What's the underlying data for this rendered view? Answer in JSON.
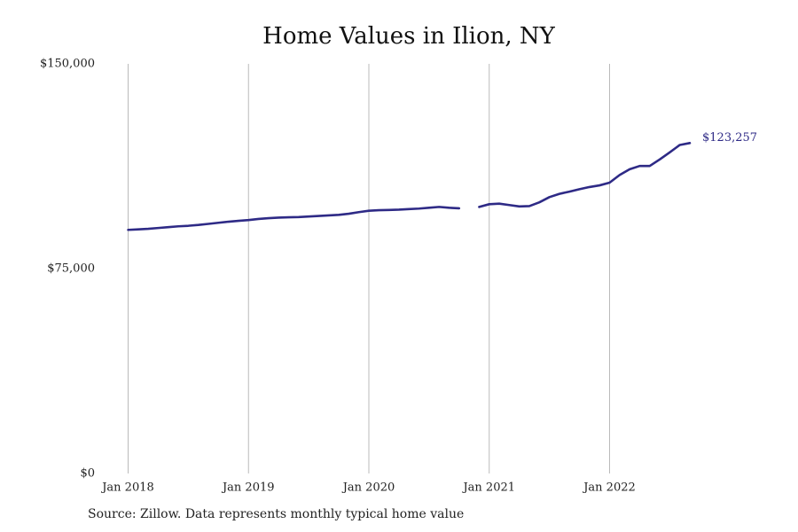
{
  "chart_data": {
    "type": "line",
    "title": "Home Values in Ilion, NY",
    "xlabel": "",
    "ylabel": "",
    "source": "Source: Zillow. Data represents monthly typical home value",
    "ylim": [
      0,
      150000
    ],
    "xlim": [
      "2018-01",
      "2022-12"
    ],
    "grid": "vertical",
    "legend": "none",
    "colors": {
      "line": "#2e2a86",
      "grid": "#bbbbbb",
      "text": "#222222"
    },
    "y_ticks": [
      {
        "value": 0,
        "label": "$0"
      },
      {
        "value": 75000,
        "label": "$75,000"
      },
      {
        "value": 150000,
        "label": "$150,000"
      }
    ],
    "x_ticks": [
      {
        "date": "2018-01",
        "label": "Jan 2018"
      },
      {
        "date": "2019-01",
        "label": "Jan 2019"
      },
      {
        "date": "2020-01",
        "label": "Jan 2020"
      },
      {
        "date": "2021-01",
        "label": "Jan 2021"
      },
      {
        "date": "2022-01",
        "label": "Jan 2022"
      }
    ],
    "end_label": "$123,257",
    "series": [
      {
        "segments": [
          [
            {
              "date": "2018-01",
              "value": 89200
            },
            {
              "date": "2018-02",
              "value": 89400
            },
            {
              "date": "2018-03",
              "value": 89600
            },
            {
              "date": "2018-04",
              "value": 89900
            },
            {
              "date": "2018-05",
              "value": 90200
            },
            {
              "date": "2018-06",
              "value": 90500
            },
            {
              "date": "2018-07",
              "value": 90700
            },
            {
              "date": "2018-08",
              "value": 91000
            },
            {
              "date": "2018-09",
              "value": 91400
            },
            {
              "date": "2018-10",
              "value": 91800
            },
            {
              "date": "2018-11",
              "value": 92200
            },
            {
              "date": "2018-12",
              "value": 92500
            },
            {
              "date": "2019-01",
              "value": 92800
            },
            {
              "date": "2019-02",
              "value": 93200
            },
            {
              "date": "2019-03",
              "value": 93500
            },
            {
              "date": "2019-04",
              "value": 93700
            },
            {
              "date": "2019-05",
              "value": 93800
            },
            {
              "date": "2019-06",
              "value": 93900
            },
            {
              "date": "2019-07",
              "value": 94100
            },
            {
              "date": "2019-08",
              "value": 94300
            },
            {
              "date": "2019-09",
              "value": 94500
            },
            {
              "date": "2019-10",
              "value": 94700
            },
            {
              "date": "2019-11",
              "value": 95100
            },
            {
              "date": "2019-12",
              "value": 95700
            },
            {
              "date": "2020-01",
              "value": 96200
            },
            {
              "date": "2020-02",
              "value": 96400
            },
            {
              "date": "2020-03",
              "value": 96500
            },
            {
              "date": "2020-04",
              "value": 96600
            },
            {
              "date": "2020-05",
              "value": 96800
            },
            {
              "date": "2020-06",
              "value": 97000
            },
            {
              "date": "2020-07",
              "value": 97300
            },
            {
              "date": "2020-08",
              "value": 97600
            },
            {
              "date": "2020-09",
              "value": 97300
            },
            {
              "date": "2020-10",
              "value": 97100
            }
          ],
          [
            {
              "date": "2020-12",
              "value": 97600
            },
            {
              "date": "2021-01",
              "value": 98600
            },
            {
              "date": "2021-02",
              "value": 98800
            },
            {
              "date": "2021-03",
              "value": 98300
            },
            {
              "date": "2021-04",
              "value": 97800
            },
            {
              "date": "2021-05",
              "value": 97900
            },
            {
              "date": "2021-06",
              "value": 99300
            },
            {
              "date": "2021-07",
              "value": 101200
            },
            {
              "date": "2021-08",
              "value": 102400
            },
            {
              "date": "2021-09",
              "value": 103200
            },
            {
              "date": "2021-10",
              "value": 104100
            },
            {
              "date": "2021-11",
              "value": 104900
            },
            {
              "date": "2021-12",
              "value": 105500
            },
            {
              "date": "2022-01",
              "value": 106500
            },
            {
              "date": "2022-02",
              "value": 109300
            },
            {
              "date": "2022-03",
              "value": 111400
            },
            {
              "date": "2022-04",
              "value": 112600
            },
            {
              "date": "2022-05",
              "value": 112600
            },
            {
              "date": "2022-06",
              "value": 115000
            },
            {
              "date": "2022-07",
              "value": 117600
            },
            {
              "date": "2022-08",
              "value": 120300
            },
            {
              "date": "2022-09",
              "value": 121000
            }
          ]
        ]
      }
    ]
  }
}
